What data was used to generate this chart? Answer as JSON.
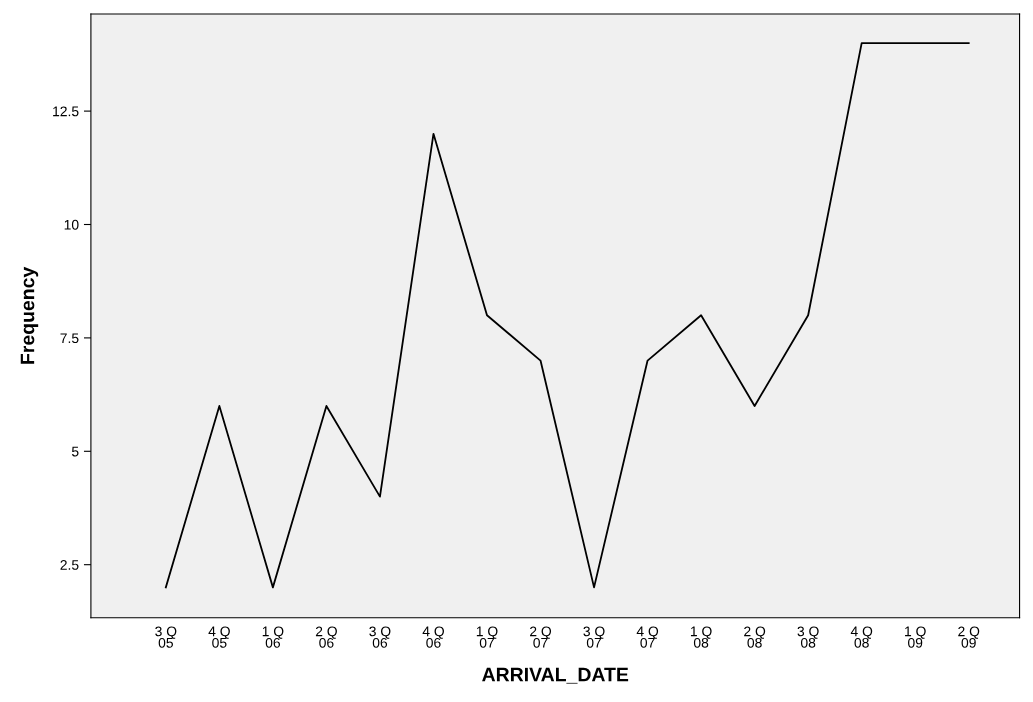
{
  "chart_data": {
    "type": "line",
    "xlabel": "ARRIVAL_DATE",
    "ylabel": "Frequency",
    "categories": [
      "3 Q\n05",
      "4 Q\n05",
      "1 Q\n06",
      "2 Q\n06",
      "3 Q\n06",
      "4 Q\n06",
      "1 Q\n07",
      "2 Q\n07",
      "3 Q\n07",
      "4 Q\n07",
      "1 Q\n08",
      "2 Q\n08",
      "3 Q\n08",
      "4 Q\n08",
      "1 Q\n09",
      "2 Q\n09"
    ],
    "series": [
      {
        "color": "#000000",
        "values": [
          2,
          6,
          2,
          6,
          4,
          12,
          8,
          7,
          2,
          7,
          8,
          6,
          8,
          14,
          14,
          14
        ]
      }
    ],
    "ylim": [
      1.33,
      14.64
    ],
    "yticks": [
      2.5,
      5,
      7.5,
      10,
      12.5
    ],
    "grid": false,
    "marker": "none",
    "line_style": "solid"
  }
}
